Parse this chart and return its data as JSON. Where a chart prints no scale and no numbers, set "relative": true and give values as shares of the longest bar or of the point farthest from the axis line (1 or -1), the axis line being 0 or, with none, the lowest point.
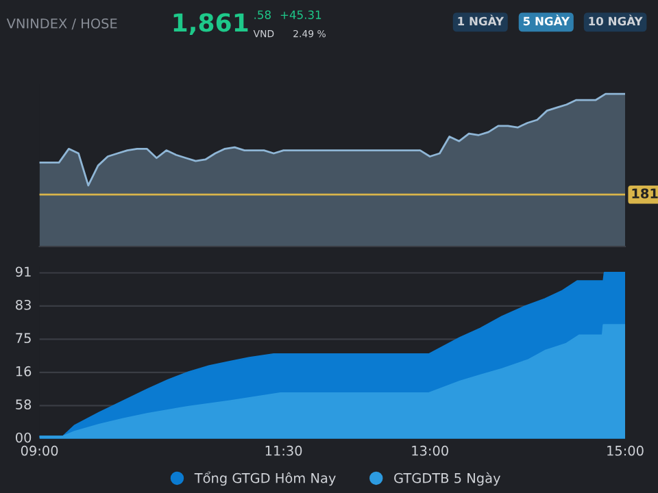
{
  "chart_data": [
    {
      "type": "area",
      "relative": true,
      "title": "VNINDEX / HOSE",
      "grid": false,
      "legend": false,
      "categories": [
        null,
        null,
        null,
        null,
        null,
        null,
        null,
        null,
        null,
        null,
        null,
        null,
        null,
        null,
        null,
        null,
        null,
        null,
        null,
        null,
        null,
        null,
        null,
        null,
        null,
        null,
        null,
        null,
        null,
        null,
        null,
        null,
        null,
        null,
        null,
        null,
        null,
        null,
        null,
        null,
        null,
        null,
        null,
        null,
        null,
        null,
        null,
        null,
        null,
        null,
        null,
        null,
        null,
        null,
        null,
        null,
        null,
        null,
        null,
        null,
        null
      ],
      "annotations": [
        "1,861",
        ".58",
        "VND",
        "+45.31",
        "2.49 %",
        "1 NGÀY",
        "5 NGÀY",
        "10 NGÀY",
        "181"
      ],
      "series": [
        {
          "color": "#8fb6d6",
          "values": [
            0.55,
            0.55,
            0.55,
            0.64,
            0.61,
            0.4,
            0.53,
            0.59,
            0.61,
            0.63,
            0.64,
            0.64,
            0.58,
            0.63,
            0.6,
            0.58,
            0.56,
            0.57,
            0.61,
            0.64,
            0.65,
            0.63,
            0.63,
            0.63,
            0.61,
            0.63,
            0.63,
            0.63,
            0.63,
            0.63,
            0.63,
            0.63,
            0.63,
            0.63,
            0.63,
            0.63,
            0.63,
            0.63,
            0.63,
            0.63,
            0.59,
            0.61,
            0.72,
            0.69,
            0.74,
            0.73,
            0.75,
            0.79,
            0.79,
            0.78,
            0.81,
            0.83,
            0.89,
            0.91,
            0.93,
            0.96,
            0.96,
            0.96,
            1.0,
            1.0,
            1.0
          ]
        }
      ],
      "ref_lines": [
        {
          "axis": "y",
          "value": 0.34,
          "color": "#d9b54a"
        }
      ]
    },
    {
      "type": "area",
      "relative": true,
      "legend": "bottom",
      "grid": "y",
      "annotations": [
        "00",
        "58",
        "16",
        "75",
        "83",
        "91"
      ],
      "xlim": [
        9,
        15
      ],
      "xticks": [
        {
          "value": 9,
          "label": "09:00"
        },
        {
          "value": 11.5,
          "label": "11:30"
        },
        {
          "value": 13,
          "label": "13:00"
        },
        {
          "value": 15,
          "label": "15:00"
        }
      ],
      "series": [
        {
          "name": "Tổng GTGD Hôm Nay",
          "color": "#0b7bd1",
          "x": [
            9.0,
            9.24,
            9.36,
            9.61,
            9.86,
            10.11,
            10.32,
            10.53,
            10.74,
            10.95,
            11.15,
            11.4,
            12.99,
            13.31,
            13.52,
            13.74,
            13.96,
            14.18,
            14.36,
            14.51,
            14.78,
            14.79,
            15.0
          ],
          "values": [
            0.013,
            0.013,
            0.079,
            0.156,
            0.227,
            0.298,
            0.354,
            0.401,
            0.438,
            0.464,
            0.488,
            0.509,
            0.509,
            0.609,
            0.665,
            0.736,
            0.794,
            0.842,
            0.892,
            0.95,
            0.95,
            1.0,
            1.0
          ]
        },
        {
          "name": "GTGDTB 5 Ngày",
          "color": "#2d9be0",
          "x": [
            9.0,
            9.24,
            9.36,
            9.61,
            9.86,
            10.11,
            10.53,
            10.95,
            11.47,
            12.99,
            13.31,
            13.52,
            13.74,
            14.01,
            14.18,
            14.4,
            14.53,
            14.77,
            14.78,
            15.0
          ],
          "values": [
            0.013,
            0.013,
            0.042,
            0.084,
            0.119,
            0.15,
            0.193,
            0.227,
            0.274,
            0.274,
            0.346,
            0.383,
            0.42,
            0.475,
            0.53,
            0.573,
            0.623,
            0.623,
            0.686,
            0.686
          ]
        }
      ]
    }
  ]
}
